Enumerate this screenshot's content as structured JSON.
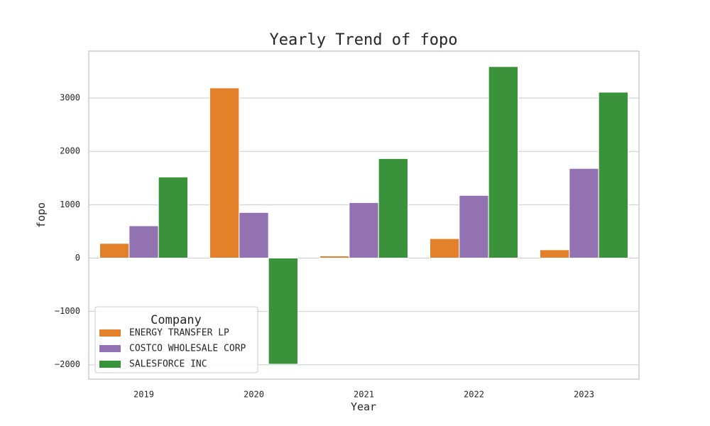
{
  "chart_data": {
    "type": "bar",
    "title": "Yearly Trend of fopo",
    "xlabel": "Year",
    "ylabel": "fopo",
    "categories": [
      "2019",
      "2020",
      "2021",
      "2022",
      "2023"
    ],
    "series": [
      {
        "name": "ENERGY TRANSFER LP",
        "color": "#e3812b",
        "values": [
          275,
          3190,
          40,
          365,
          155
        ]
      },
      {
        "name": "COSTCO WHOLESALE CORP",
        "color": "#9372b2",
        "values": [
          605,
          855,
          1040,
          1175,
          1680
        ]
      },
      {
        "name": "SALESFORCE INC",
        "color": "#3a923a",
        "values": [
          1520,
          -1990,
          1865,
          3590,
          3110
        ]
      }
    ],
    "ylim": [
      -2270,
      3880
    ],
    "yticks": [
      -2000,
      -1000,
      0,
      1000,
      2000,
      3000
    ],
    "ytick_labels": [
      "−2000",
      "−1000",
      "0",
      "1000",
      "2000",
      "3000"
    ],
    "grid": true,
    "legend": {
      "title": "Company",
      "position": "lower-left"
    }
  }
}
